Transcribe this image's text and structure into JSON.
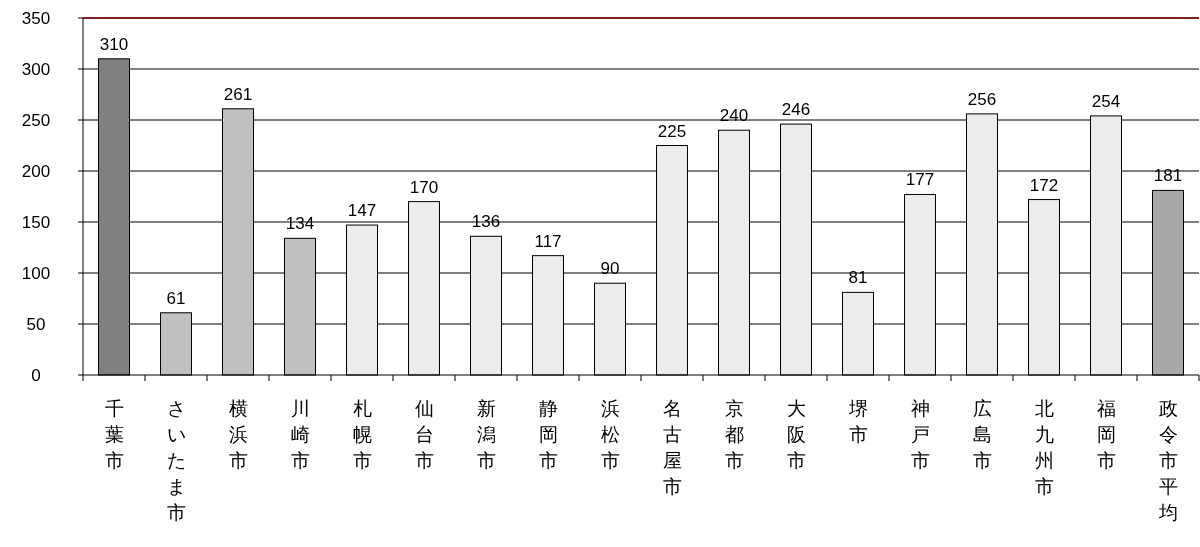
{
  "chart_data": {
    "type": "bar",
    "categories": [
      "千葉市",
      "さいたま市",
      "横浜市",
      "川崎市",
      "札幌市",
      "仙台市",
      "新潟市",
      "静岡市",
      "浜松市",
      "名古屋市",
      "京都市",
      "大阪市",
      "堺市",
      "神戸市",
      "広島市",
      "北九州市",
      "福岡市",
      "政令市平均"
    ],
    "values": [
      310,
      61,
      261,
      134,
      147,
      170,
      136,
      117,
      90,
      225,
      240,
      246,
      81,
      177,
      256,
      172,
      254,
      181
    ],
    "colors": [
      "#808080",
      "#c0c0c0",
      "#c0c0c0",
      "#c0c0c0",
      "#ececec",
      "#ececec",
      "#ececec",
      "#ececec",
      "#ececec",
      "#ececec",
      "#ececec",
      "#ececec",
      "#ececec",
      "#ececec",
      "#ececec",
      "#ececec",
      "#ececec",
      "#a8a8a8"
    ],
    "ylim": [
      0,
      350
    ],
    "yticks": [
      0,
      50,
      100,
      150,
      200,
      250,
      300,
      350
    ],
    "grid": "y",
    "data_labels": true,
    "ref_lines": [
      {
        "axis": "y",
        "value": 350,
        "color": "#800000"
      }
    ]
  }
}
